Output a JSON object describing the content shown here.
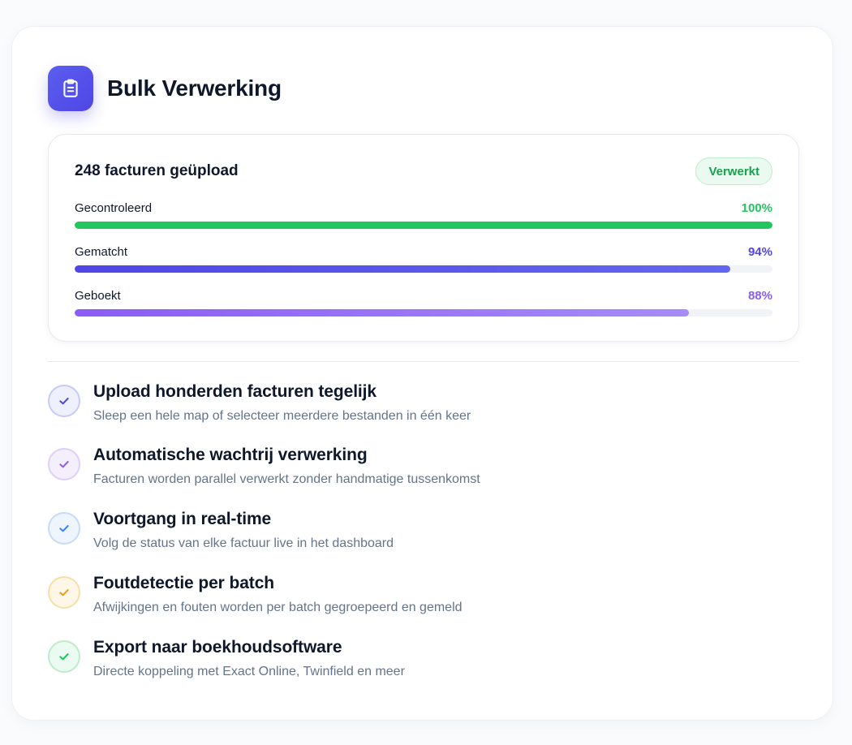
{
  "header": {
    "icon": "clipboard-icon",
    "title": "Bulk Verwerking"
  },
  "status": {
    "title": "248 facturen geüpload",
    "badge": "Verwerkt",
    "badge_color": "#16a34a",
    "progress": [
      {
        "label": "Gecontroleerd",
        "percent_label": "100%",
        "value": 100,
        "color": "#22c55e",
        "color_end": "#22c55e"
      },
      {
        "label": "Gematcht",
        "percent_label": "94%",
        "value": 94,
        "color": "#4f46e5",
        "color_end": "#6366f1"
      },
      {
        "label": "Geboekt",
        "percent_label": "88%",
        "value": 88,
        "color": "#8b5cf6",
        "color_end": "#a78bfa"
      }
    ]
  },
  "features": [
    {
      "icon": "check-icon",
      "title": "Upload honderden facturen tegelijk",
      "description": "Sleep een hele map of selecteer meerdere bestanden in één keer",
      "color": "#4f46e5",
      "bg": "#eef0fd",
      "border": "#c7caf5"
    },
    {
      "icon": "check-icon",
      "title": "Automatische wachtrij verwerking",
      "description": "Facturen worden parallel verwerkt zonder handmatige tussenkomst",
      "color": "#8b5cf6",
      "bg": "#f4effd",
      "border": "#ddd0f8"
    },
    {
      "icon": "check-icon",
      "title": "Voortgang in real-time",
      "description": "Volg de status van elke factuur live in het dashboard",
      "color": "#3b82f6",
      "bg": "#eef5fe",
      "border": "#c5dbf8"
    },
    {
      "icon": "check-icon",
      "title": "Foutdetectie per batch",
      "description": "Afwijkingen en fouten worden per batch gegroepeerd en gemeld",
      "color": "#f59e0b",
      "bg": "#fef7e8",
      "border": "#f8dfa8"
    },
    {
      "icon": "check-icon",
      "title": "Export naar boekhoudsoftware",
      "description": "Directe koppeling met Exact Online, Twinfield en meer",
      "color": "#22c55e",
      "bg": "#ecfbf1",
      "border": "#bdecca"
    }
  ]
}
